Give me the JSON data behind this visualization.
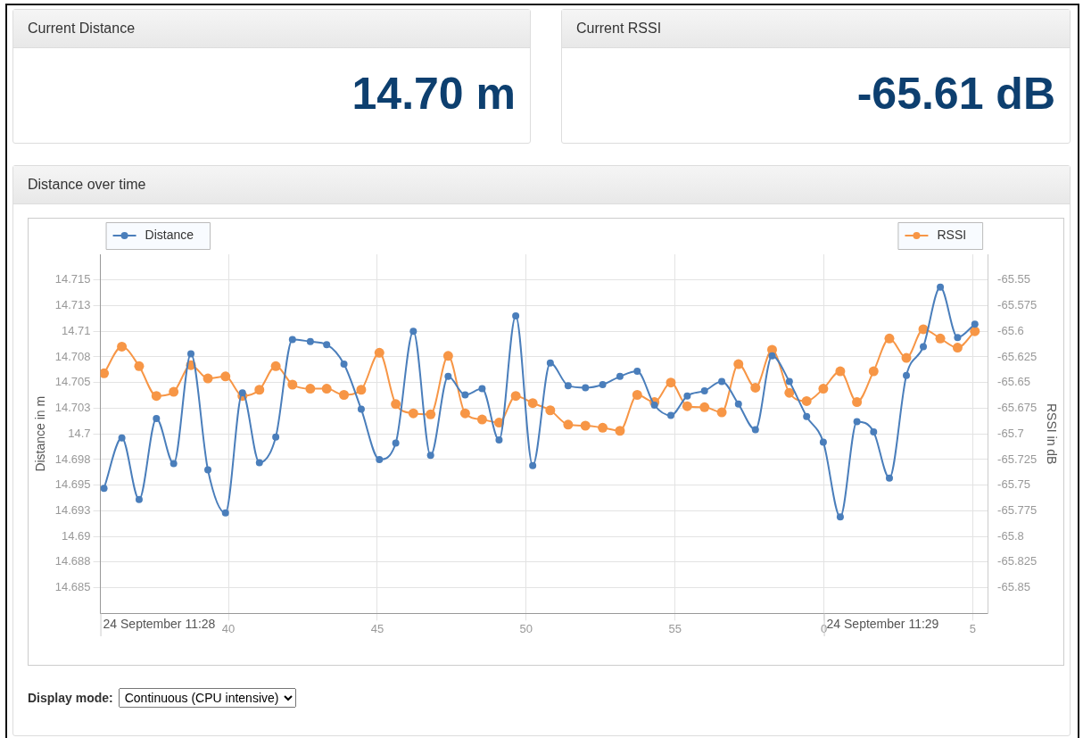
{
  "chart_data": [
    {
      "type": "other",
      "title": "Current Distance",
      "annotations": [
        "14.70 m"
      ]
    },
    {
      "type": "other",
      "title": "Current RSSI",
      "annotations": [
        "-65.61 dB"
      ]
    },
    {
      "type": "line",
      "title": "Distance over time",
      "ylabel": "Distance in m",
      "y2label": "RSSI in dB",
      "x": [
        "--09-24T11:28:35.82",
        "--09-24T11:28:36.42",
        "--09-24T11:28:37.00",
        "--09-24T11:28:37.58",
        "--09-24T11:28:38.16",
        "--09-24T11:28:38.74",
        "--09-24T11:28:39.31",
        "--09-24T11:28:39.90",
        "--09-24T11:28:40.47",
        "--09-24T11:28:41.04",
        "--09-24T11:28:41.59",
        "--09-24T11:28:42.15",
        "--09-24T11:28:42.75",
        "--09-24T11:28:43.30",
        "--09-24T11:28:43.88",
        "--09-24T11:28:44.46",
        "--09-24T11:28:45.07",
        "--09-24T11:28:45.62",
        "--09-24T11:28:46.21",
        "--09-24T11:28:46.79",
        "--09-24T11:28:47.38",
        "--09-24T11:28:47.95",
        "--09-24T11:28:48.52",
        "--09-24T11:28:49.09",
        "--09-24T11:28:49.65",
        "--09-24T11:28:50.22",
        "--09-24T11:28:50.81",
        "--09-24T11:28:51.41",
        "--09-24T11:28:51.99",
        "--09-24T11:28:52.57",
        "--09-24T11:28:53.15",
        "--09-24T11:28:53.73",
        "--09-24T11:28:54.31",
        "--09-24T11:28:54.86",
        "--09-24T11:28:55.41",
        "--09-24T11:28:55.99",
        "--09-24T11:28:56.57",
        "--09-24T11:28:57.13",
        "--09-24T11:28:57.70",
        "--09-24T11:28:58.26",
        "--09-24T11:28:58.84",
        "--09-24T11:28:59.42",
        "--09-24T11:28:59.98",
        "--09-24T11:29:00.55",
        "--09-24T11:29:01.11",
        "--09-24T11:29:01.67",
        "--09-24T11:29:02.20",
        "--09-24T11:29:02.77",
        "--09-24T11:29:03.34",
        "--09-24T11:29:03.91",
        "--09-24T11:29:04.49",
        "--09-24T11:29:05.07"
      ],
      "series": [
        {
          "name": "Distance",
          "color": "#4a7ebb",
          "values": [
            14.6947,
            14.6996,
            14.6936,
            14.7015,
            14.6971,
            14.7078,
            14.6965,
            14.6923,
            14.704,
            14.6972,
            14.6997,
            14.7092,
            14.709,
            14.7087,
            14.7068,
            14.7024,
            14.6975,
            14.6991,
            14.71,
            14.6979,
            14.7056,
            14.7038,
            14.7044,
            14.6994,
            14.7115,
            14.6969,
            14.7069,
            14.7047,
            14.7045,
            14.7048,
            14.7056,
            14.7061,
            14.7028,
            14.7018,
            14.7037,
            14.7042,
            14.7051,
            14.7029,
            14.7004,
            14.7076,
            14.7051,
            14.7017,
            14.6992,
            14.6919,
            14.7012,
            14.7002,
            14.6957,
            14.7057,
            14.7085,
            14.7143,
            14.7094,
            14.7107
          ]
        },
        {
          "name": "RSSI",
          "color": "#f79646",
          "axis": "y2",
          "values": [
            -65.641,
            -65.615,
            -65.634,
            -65.663,
            -65.659,
            -65.633,
            -65.646,
            -65.644,
            -65.663,
            -65.657,
            -65.634,
            -65.652,
            -65.656,
            -65.656,
            -65.662,
            -65.657,
            -65.621,
            -65.671,
            -65.68,
            -65.681,
            -65.624,
            -65.68,
            -65.686,
            -65.689,
            -65.663,
            -65.67,
            -65.677,
            -65.691,
            -65.692,
            -65.694,
            -65.697,
            -65.662,
            -65.669,
            -65.65,
            -65.673,
            -65.674,
            -65.679,
            -65.632,
            -65.655,
            -65.618,
            -65.66,
            -65.668,
            -65.656,
            -65.639,
            -65.669,
            -65.639,
            -65.607,
            -65.626,
            -65.598,
            -65.607,
            -65.616,
            -65.6
          ]
        }
      ],
      "xlim": [
        "--09-24T11:28:35.70",
        "--09-24T11:29:05.50"
      ],
      "xticks": [
        {
          "value": "--09-24T11:28:40",
          "label": "40"
        },
        {
          "value": "--09-24T11:28:45",
          "label": "45"
        },
        {
          "value": "--09-24T11:28:50",
          "label": "50"
        },
        {
          "value": "--09-24T11:28:55",
          "label": "55"
        },
        {
          "value": "--09-24T11:29:00",
          "label": "0"
        },
        {
          "value": "--09-24T11:29:05",
          "label": "5"
        }
      ],
      "ylim": [
        14.6825,
        14.7175
      ],
      "yticks": [
        14.685,
        {
          "value": 14.6875,
          "label": "14.688"
        },
        14.69,
        {
          "value": 14.6925,
          "label": "14.693"
        },
        14.695,
        {
          "value": 14.6975,
          "label": "14.698"
        },
        14.7,
        {
          "value": 14.7025,
          "label": "14.703"
        },
        14.705,
        {
          "value": 14.7075,
          "label": "14.708"
        },
        14.71,
        {
          "value": 14.7125,
          "label": "14.713"
        },
        14.715
      ],
      "y2lim": [
        -65.875,
        -65.525
      ],
      "y2ticks": [
        -65.85,
        -65.825,
        -65.8,
        -65.775,
        -65.75,
        -65.725,
        -65.7,
        -65.675,
        -65.65,
        -65.625,
        -65.6,
        -65.575,
        -65.55
      ],
      "grid": true,
      "legend": "top",
      "marker": "circle",
      "line_style": "solid",
      "annotations": [
        "24 September 11:28",
        "24 September 11:29",
        "Display mode:",
        "Continuous (CPU intensive)"
      ]
    }
  ]
}
